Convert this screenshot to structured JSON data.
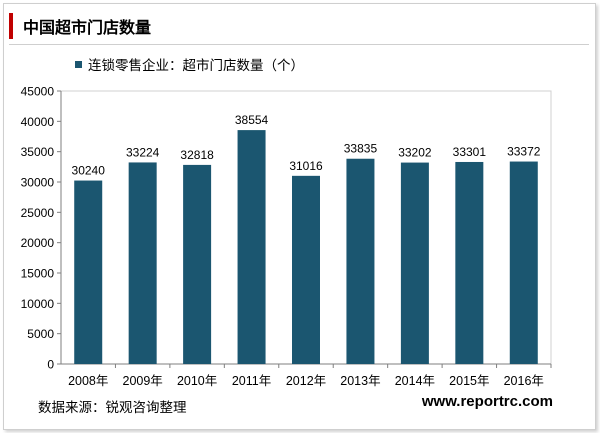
{
  "title": "中国超市门店数量",
  "legend_label": "连锁零售企业：超市门店数量（个）",
  "source": "数据来源：锐观咨询整理",
  "website": "www.reportrc.com",
  "colors": {
    "bar": "#1b5670",
    "accent": "#c00000"
  },
  "chart_data": {
    "type": "bar",
    "categories": [
      "2008年",
      "2009年",
      "2010年",
      "2011年",
      "2012年",
      "2013年",
      "2014年",
      "2015年",
      "2016年"
    ],
    "series": [
      {
        "name": "连锁零售企业：超市门店数量（个）",
        "values": [
          30240,
          33224,
          32818,
          38554,
          31016,
          33835,
          33202,
          33301,
          33372
        ]
      }
    ],
    "ylim": [
      0,
      45000
    ],
    "yticks": [
      0,
      5000,
      10000,
      15000,
      20000,
      25000,
      30000,
      35000,
      40000,
      45000
    ],
    "grid": false,
    "legend_position": "top-left"
  }
}
